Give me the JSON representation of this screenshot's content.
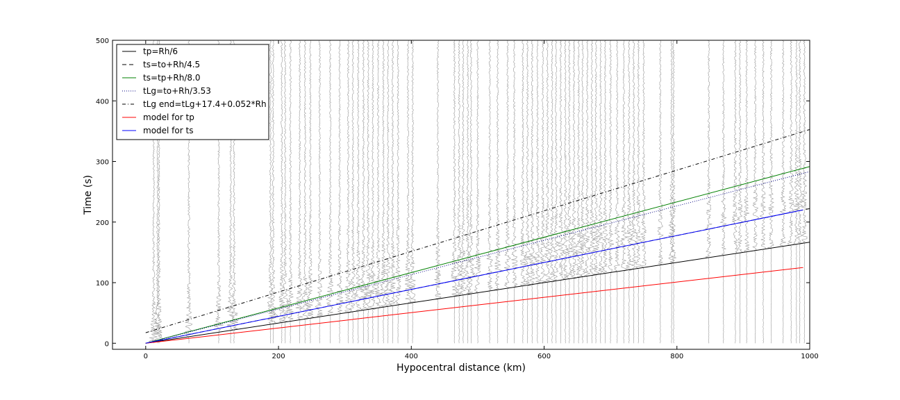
{
  "chart_data": {
    "type": "line",
    "title": "",
    "xlabel": "Hypocentral distance (km)",
    "ylabel": "Time (s)",
    "xlim": [
      -50,
      1000
    ],
    "ylim": [
      -10,
      500
    ],
    "xticks": [
      0,
      200,
      400,
      600,
      800,
      1000
    ],
    "yticks": [
      0,
      100,
      200,
      300,
      400,
      500
    ],
    "grid": false,
    "legend_position": "top-left",
    "series": [
      {
        "name": "tp=Rh/6",
        "color": "#000000",
        "dash": "solid",
        "x": [
          0,
          1000
        ],
        "y": [
          0,
          166.7
        ]
      },
      {
        "name": "ts=to+Rh/4.5",
        "color": "#000000",
        "dash": "dashed",
        "x": [
          0,
          1000
        ],
        "y": [
          0,
          222.2
        ]
      },
      {
        "name": "ts=tp+Rh/8.0",
        "color": "#008000",
        "dash": "solid",
        "x": [
          0,
          1000
        ],
        "y": [
          0,
          291.7
        ]
      },
      {
        "name": "tLg=to+Rh/3.53",
        "color": "#000080",
        "dash": "dotted",
        "x": [
          0,
          1000
        ],
        "y": [
          0,
          283.3
        ]
      },
      {
        "name": "tLg end=tLg+17.4+0.052*Rh",
        "color": "#000000",
        "dash": "dashdot",
        "x": [
          0,
          1000
        ],
        "y": [
          17.4,
          352.7
        ]
      },
      {
        "name": "model for tp",
        "color": "#ff0000",
        "dash": "solid",
        "x": [
          0,
          990
        ],
        "y": [
          0,
          125
        ]
      },
      {
        "name": "model for ts",
        "color": "#0000ff",
        "dash": "solid",
        "x": [
          0,
          990
        ],
        "y": [
          0,
          220
        ]
      }
    ],
    "seismograms": {
      "color": "#999999",
      "distances": [
        12,
        18,
        20,
        65,
        110,
        128,
        133,
        188,
        192,
        205,
        210,
        218,
        232,
        240,
        248,
        262,
        278,
        292,
        305,
        312,
        320,
        328,
        335,
        342,
        350,
        358,
        365,
        372,
        380,
        395,
        402,
        440,
        465,
        472,
        478,
        485,
        490,
        500,
        518,
        530,
        545,
        555,
        568,
        575,
        582,
        590,
        598,
        605,
        612,
        618,
        625,
        632,
        638,
        645,
        652,
        658,
        665,
        672,
        678,
        685,
        692,
        700,
        710,
        720,
        728,
        735,
        742,
        750,
        775,
        792,
        795,
        848,
        870,
        888,
        895,
        905,
        918,
        930,
        942,
        960,
        972,
        980,
        985,
        992
      ]
    }
  }
}
